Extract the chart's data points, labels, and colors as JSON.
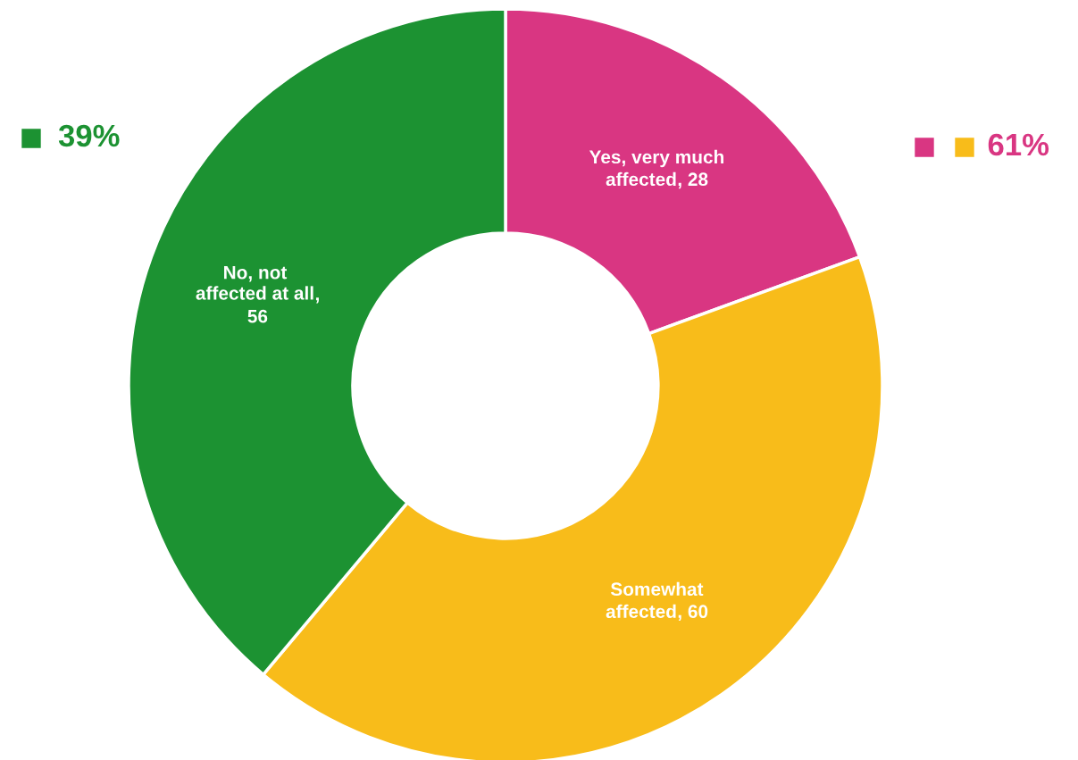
{
  "chart_data": {
    "type": "donut",
    "categories": [
      "Yes, very much\naffected",
      "Somewhat\naffected",
      "No, not\naffected at all"
    ],
    "values": [
      28,
      60,
      56
    ],
    "colors": [
      "#d93682",
      "#f8bc1a",
      "#1c9232"
    ],
    "value_labels": [
      ", 28",
      ", 60",
      ",\n56"
    ],
    "annotations": [
      "39%",
      "61%"
    ]
  }
}
